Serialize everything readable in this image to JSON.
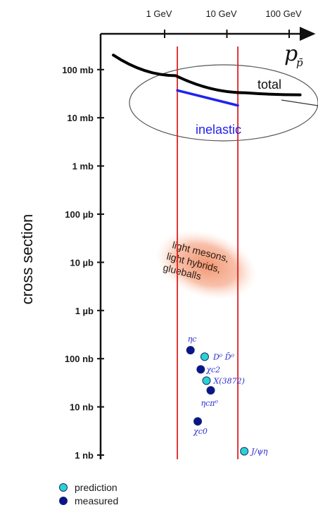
{
  "chart_data": {
    "type": "scatter",
    "ylabel": "cross section",
    "y_ticks": [
      "1 nb",
      "10 nb",
      "100 nb",
      "1 µb",
      "10 µb",
      "100 µb",
      "1 mb",
      "10 mb",
      "100 mb"
    ],
    "x_ticks": [
      "1 GeV",
      "10 GeV",
      "100 GeV"
    ],
    "x_axis_label": "p",
    "x_axis_sub": "p̄",
    "scale": "log-log",
    "vertical_lines_at_GeV": [
      1.6,
      15
    ],
    "series": [
      {
        "name": "total",
        "points": [
          [
            0.15,
            200
          ],
          [
            1.5,
            75
          ],
          [
            20,
            33
          ],
          [
            150,
            30
          ]
        ]
      },
      {
        "name": "inelastic",
        "points": [
          [
            1.6,
            37
          ],
          [
            15,
            18
          ]
        ]
      }
    ],
    "ellipse_label": "",
    "shaded_label": [
      "light mesons,",
      "light hybrids,",
      "glueballs"
    ],
    "points": [
      {
        "label": "ηc",
        "kind": "measured",
        "x": 2.6,
        "y": 150
      },
      {
        "label": "χc2",
        "kind": "measured",
        "x": 3.8,
        "y": 60
      },
      {
        "label": "D⁰ D̄⁰",
        "kind": "prediction",
        "x": 4.4,
        "y": 110
      },
      {
        "label": "X(3872)",
        "kind": "prediction",
        "x": 4.7,
        "y": 35
      },
      {
        "label": "ηcπ⁰",
        "kind": "measured",
        "x": 5.5,
        "y": 22
      },
      {
        "label": "χc0",
        "kind": "measured",
        "x": 3.4,
        "y": 5
      },
      {
        "label": "J/ψη",
        "kind": "prediction",
        "x": 19,
        "y": 1.2
      }
    ],
    "legend": [
      {
        "label": "prediction",
        "kind": "prediction"
      },
      {
        "label": "measured",
        "kind": "measured"
      }
    ],
    "legend_position": "bottom-left"
  },
  "colors": {
    "axis": "#111111",
    "total": "#000000",
    "inelastic": "#2222ee",
    "vline": "#e02020",
    "prediction": "#29d3d3",
    "measured": "#0a148e",
    "shade": "#f4a582"
  }
}
